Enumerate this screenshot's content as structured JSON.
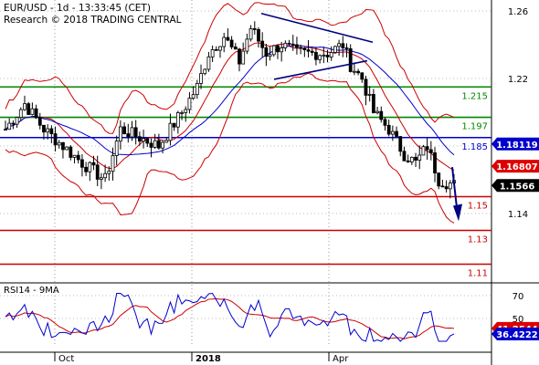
{
  "header": {
    "line1": "EUR/USD - 1d - 13:33:45 (CET)",
    "line2": "Research © 2018 TRADING CENTRAL"
  },
  "chart_data": [
    {
      "type": "candlestick",
      "symbol": "EUR/USD",
      "interval": "1d",
      "ylim": [
        1.095,
        1.275
      ],
      "y_ticks": [
        "1.26",
        "1.22",
        "1.18",
        "1.14"
      ],
      "x_ticks": [
        "Oct",
        "2018",
        "Apr"
      ],
      "horizontal_levels": [
        {
          "label": "1.215",
          "value": 1.215,
          "color": "#008800"
        },
        {
          "label": "1.197",
          "value": 1.197,
          "color": "#008800"
        },
        {
          "label": "1.185",
          "value": 1.185,
          "color": "#0000cc"
        },
        {
          "label": "1.15",
          "value": 1.15,
          "color": "#cc0000"
        },
        {
          "label": "1.13",
          "value": 1.13,
          "color": "#cc0000"
        },
        {
          "label": "1.11",
          "value": 1.11,
          "color": "#cc0000"
        }
      ],
      "price_tags": [
        {
          "label": "1.18119",
          "value": 1.18119,
          "bg": "#0000cc",
          "fg": "#ffffff"
        },
        {
          "label": "1.16807",
          "value": 1.16807,
          "bg": "#dd0000",
          "fg": "#ffffff"
        },
        {
          "label": "1.1566",
          "value": 1.1566,
          "bg": "#000000",
          "fg": "#ffffff"
        }
      ],
      "close_anchors": [
        [
          0,
          1.19
        ],
        [
          5,
          1.205
        ],
        [
          10,
          1.19
        ],
        [
          15,
          1.18
        ],
        [
          20,
          1.17
        ],
        [
          26,
          1.16
        ],
        [
          30,
          1.19
        ],
        [
          35,
          1.185
        ],
        [
          40,
          1.18
        ],
        [
          46,
          1.2
        ],
        [
          50,
          1.215
        ],
        [
          53,
          1.235
        ],
        [
          57,
          1.245
        ],
        [
          61,
          1.23
        ],
        [
          64,
          1.25
        ],
        [
          68,
          1.235
        ],
        [
          72,
          1.24
        ],
        [
          76,
          1.235
        ],
        [
          80,
          1.235
        ],
        [
          84,
          1.235
        ],
        [
          88,
          1.24
        ],
        [
          90,
          1.228
        ],
        [
          93,
          1.22
        ],
        [
          96,
          1.2
        ],
        [
          100,
          1.19
        ],
        [
          104,
          1.175
        ],
        [
          107,
          1.17
        ],
        [
          110,
          1.18
        ],
        [
          113,
          1.16
        ],
        [
          117,
          1.157
        ]
      ]
    },
    {
      "type": "line",
      "title": "RSI14 - 9MA",
      "ylim": [
        25,
        80
      ],
      "y_ticks": [
        "70",
        "50"
      ],
      "current": [
        {
          "label": "41.2544",
          "value": 41.2544,
          "bg": "#dd0000",
          "fg": "#ffffff"
        },
        {
          "label": "36.4222",
          "value": 36.4222,
          "bg": "#0000cc",
          "fg": "#ffffff"
        }
      ],
      "colors": {
        "rsi": "#0000cc",
        "ma": "#cc0000"
      }
    }
  ]
}
